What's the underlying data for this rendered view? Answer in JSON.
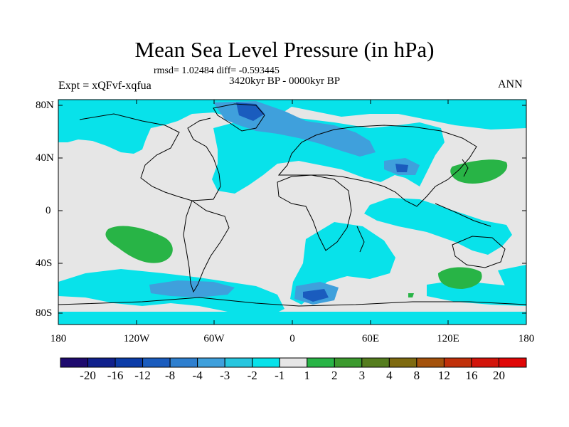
{
  "map": {
    "title": "Mean Sea Level Pressure (in hPa)",
    "stats": "rmsd= 1.02484 diff= -0.593445",
    "period": "3420kyr BP - 0000kyr BP",
    "experiment": "Expt = xQFvf-xqfua",
    "season": "ANN",
    "lat_ticks": [
      "80N",
      "40N",
      "0",
      "40S",
      "80S"
    ],
    "lon_ticks": [
      "180",
      "120W",
      "60W",
      "0",
      "60E",
      "120E",
      "180"
    ]
  },
  "colorbar": {
    "labels": [
      "-20",
      "-16",
      "-12",
      "-8",
      "-4",
      "-3",
      "-2",
      "-1",
      "1",
      "2",
      "3",
      "4",
      "8",
      "12",
      "16",
      "20"
    ],
    "colors": [
      "#1e0a6e",
      "#10208c",
      "#0b3ca8",
      "#1a5cbe",
      "#2e7fcf",
      "#3fa0dc",
      "#27c6df",
      "#08e2ea",
      "#e6e6e6",
      "#28b446",
      "#3c9a2e",
      "#557d1e",
      "#7e6a10",
      "#a4520c",
      "#c0300a",
      "#d2140a",
      "#e00606"
    ]
  },
  "palette": {
    "background_gray": "#e6e6e6",
    "light_cyan": "#08e2ea",
    "mid_blue": "#3fa0dc",
    "dark_blue": "#1a5cbe",
    "green": "#28b446"
  }
}
